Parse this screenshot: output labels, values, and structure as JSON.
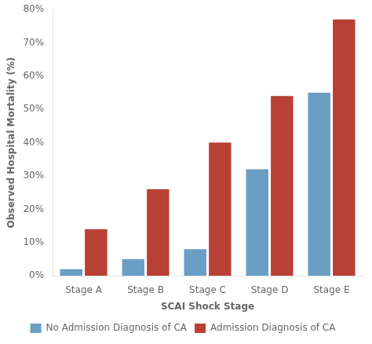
{
  "chart_data": {
    "type": "bar",
    "categories": [
      "Stage A",
      "Stage B",
      "Stage C",
      "Stage D",
      "Stage E"
    ],
    "series": [
      {
        "name": "No Admission Diagnosis of CA",
        "color": "#6a9ec5",
        "values": [
          2,
          5,
          8,
          32,
          55
        ]
      },
      {
        "name": "Admission Diagnosis of CA",
        "color": "#b84035",
        "values": [
          14,
          26,
          40,
          54,
          77
        ]
      }
    ],
    "xlabel": "SCAI Shock Stage",
    "ylabel": "Observed Hospital Mortality (%)",
    "ylim": [
      0,
      80
    ],
    "yticks": [
      {
        "value": 0,
        "label": "0%"
      },
      {
        "value": 10,
        "label": "10%"
      },
      {
        "value": 20,
        "label": "20%"
      },
      {
        "value": 30,
        "label": "30%"
      },
      {
        "value": 40,
        "label": "40%"
      },
      {
        "value": 50,
        "label": "50%"
      },
      {
        "value": 60,
        "label": "60%"
      },
      {
        "value": 70,
        "label": "70%"
      },
      {
        "value": 80,
        "label": "80%"
      }
    ],
    "grid": false,
    "legend": "bottom"
  }
}
